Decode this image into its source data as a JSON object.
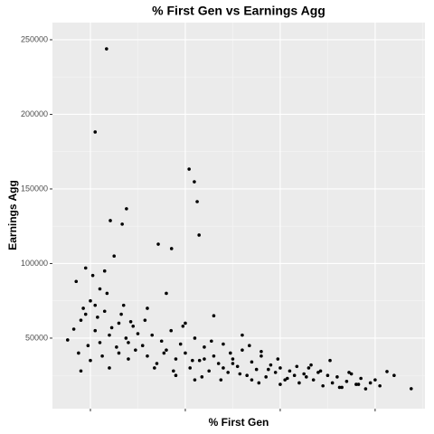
{
  "chart_data": {
    "type": "scatter",
    "title": "% First Gen vs Earnings Agg",
    "xlabel": "% First Gen",
    "ylabel": "Earnings Agg",
    "x": [
      0.234,
      0.21,
      0.408,
      0.419,
      0.425,
      0.429,
      0.242,
      0.276,
      0.267,
      0.343,
      0.371,
      0.876,
      0.825,
      0.152,
      0.17,
      0.18,
      0.19,
      0.2,
      0.21,
      0.22,
      0.23,
      0.24,
      0.25,
      0.26,
      0.27,
      0.28,
      0.29,
      0.3,
      0.175,
      0.185,
      0.195,
      0.205,
      0.215,
      0.225,
      0.235,
      0.245,
      0.255,
      0.265,
      0.275,
      0.285,
      0.295,
      0.18,
      0.2,
      0.22,
      0.24,
      0.26,
      0.28,
      0.165,
      0.19,
      0.21,
      0.23,
      0.31,
      0.32,
      0.33,
      0.34,
      0.35,
      0.36,
      0.37,
      0.38,
      0.39,
      0.4,
      0.41,
      0.42,
      0.43,
      0.44,
      0.45,
      0.46,
      0.47,
      0.48,
      0.49,
      0.5,
      0.51,
      0.52,
      0.53,
      0.54,
      0.55,
      0.56,
      0.57,
      0.58,
      0.59,
      0.6,
      0.61,
      0.62,
      0.63,
      0.64,
      0.65,
      0.315,
      0.335,
      0.355,
      0.375,
      0.395,
      0.415,
      0.435,
      0.455,
      0.475,
      0.495,
      0.515,
      0.535,
      0.555,
      0.575,
      0.595,
      0.615,
      0.635,
      0.655,
      0.32,
      0.36,
      0.4,
      0.44,
      0.48,
      0.52,
      0.56,
      0.6,
      0.38,
      0.42,
      0.46,
      0.5,
      0.54,
      0.66,
      0.67,
      0.68,
      0.69,
      0.7,
      0.71,
      0.72,
      0.73,
      0.74,
      0.75,
      0.76,
      0.77,
      0.78,
      0.79,
      0.8,
      0.665,
      0.685,
      0.705,
      0.725,
      0.745,
      0.765,
      0.81,
      0.84
    ],
    "y": [
      243900,
      188200,
      163300,
      154800,
      141500,
      119100,
      128800,
      136700,
      126400,
      113000,
      110000,
      16100,
      27600,
      48800,
      88000,
      62000,
      97000,
      75000,
      55000,
      83000,
      68000,
      52000,
      105000,
      60000,
      72000,
      47000,
      58000,
      53000,
      40000,
      70000,
      45000,
      92000,
      64000,
      38000,
      80000,
      57000,
      44000,
      66000,
      50000,
      61000,
      42000,
      28000,
      35000,
      47000,
      30000,
      40000,
      36000,
      56000,
      66000,
      72000,
      95000,
      45000,
      38000,
      52000,
      33000,
      48000,
      42000,
      55000,
      36000,
      46000,
      40000,
      30000,
      50000,
      35000,
      44000,
      28000,
      38000,
      33000,
      46000,
      27000,
      36000,
      31000,
      42000,
      25000,
      34000,
      29000,
      38000,
      24000,
      32000,
      27000,
      30000,
      22000,
      28000,
      25000,
      20000,
      26000,
      62000,
      30000,
      40000,
      28000,
      58000,
      35000,
      24000,
      48000,
      22000,
      40000,
      26000,
      45000,
      20000,
      29000,
      36000,
      23000,
      31000,
      24000,
      70000,
      80000,
      60000,
      36000,
      30000,
      52000,
      41000,
      19000,
      25000,
      22000,
      65000,
      33000,
      22000,
      30000,
      22000,
      27000,
      18000,
      25000,
      20000,
      24000,
      17000,
      21000,
      26000,
      19000,
      23000,
      16000,
      20000,
      22000,
      32000,
      28000,
      35000,
      17000,
      27000,
      19000,
      18000,
      25000
    ],
    "color": "#000000",
    "xlim": [
      0.12,
      0.905
    ],
    "xticks": [
      0.2,
      0.4,
      0.6,
      0.8
    ],
    "ylim": [
      2700,
      261500
    ],
    "yticks": [
      50000,
      100000,
      150000,
      200000,
      250000
    ],
    "grid": true
  }
}
